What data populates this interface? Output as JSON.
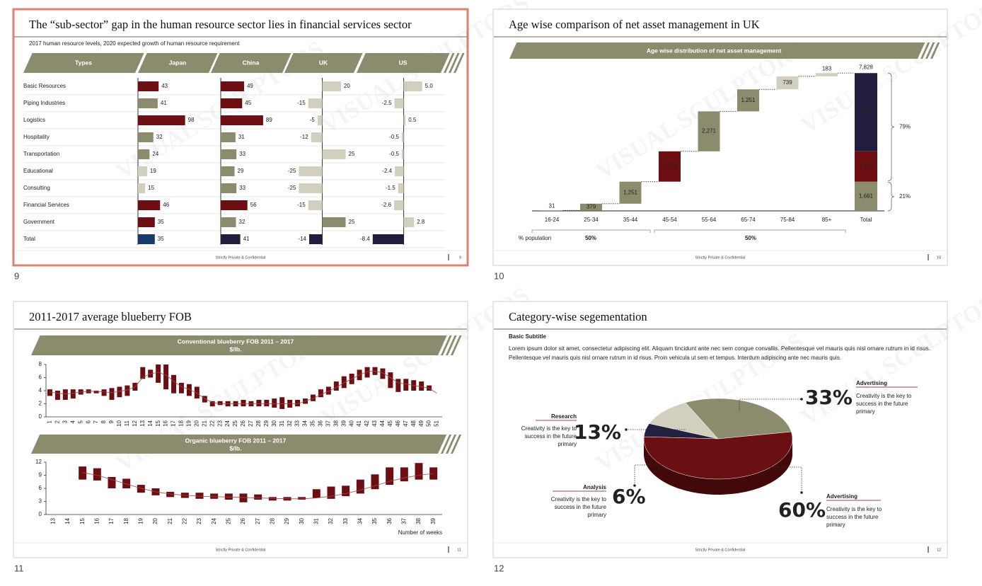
{
  "watermark": "VISUAL SCULPTORS",
  "footer": "Strictly Private & Confidential",
  "slides": [
    {
      "number": "9",
      "title": "The “sub-sector” gap in the human resource sector lies in financial services sector",
      "subtitle": "2017 human resource levels, 2020 expected growth of human resource requirement",
      "chart": {
        "type": "bar-table",
        "category_header": "Types",
        "categories": [
          "Basic Resources",
          "Piping Industries",
          "Logistics",
          "Hospitality",
          "Transportation",
          "Educational",
          "Consulting",
          "Financial Services",
          "Government",
          "Total"
        ],
        "series": [
          {
            "name": "Japan",
            "values": [
              43,
              41,
              98,
              32,
              24,
              19,
              15,
              46,
              35,
              35
            ],
            "xlim": [
              0,
              150
            ],
            "colors": [
              "#6d0f12",
              "#8c8b6e",
              "#6d0f12",
              "#8c8b6e",
              "#8c8b6e",
              "#d2cfbe",
              "#d2cfbe",
              "#6d0f12",
              "#6d0f12",
              "#173a6b"
            ]
          },
          {
            "name": "China",
            "values": [
              49,
              45,
              89,
              31,
              33,
              29,
              33,
              56,
              32,
              41
            ],
            "xlim": [
              0,
              150
            ],
            "colors": [
              "#6d0f12",
              "#6d0f12",
              "#6d0f12",
              "#8c8b6e",
              "#8c8b6e",
              "#8c8b6e",
              "#8c8b6e",
              "#6d0f12",
              "#8c8b6e",
              "#221d3e"
            ]
          },
          {
            "name": "UK",
            "values": [
              20,
              -15,
              -5,
              -12,
              25,
              -25,
              -25,
              -15,
              25,
              -14
            ],
            "xlim": [
              -42,
              42
            ],
            "colors": [
              "#d2cfbe",
              "#d2cfbe",
              "#d2cfbe",
              "#d2cfbe",
              "#d2cfbe",
              "#d2cfbe",
              "#d2cfbe",
              "#d2cfbe",
              "#8c8b6e",
              "#221d3e"
            ]
          },
          {
            "name": "US",
            "values": [
              5,
              -2.5,
              0.5,
              -0.5,
              -0.5,
              -2.4,
              -1.5,
              -2.6,
              2.8,
              -8.4
            ],
            "value_labels": [
              "5.0",
              "-2.5",
              "0.5",
              "-0.5",
              "-0.5",
              "-2.4",
              "-1.5",
              "-2.6",
              "2.8",
              "-8.4"
            ],
            "xlim": [
              -12,
              11
            ],
            "colors": [
              "#d2cfbe",
              "#d2cfbe",
              "#d2cfbe",
              "#d2cfbe",
              "#d2cfbe",
              "#d2cfbe",
              "#d2cfbe",
              "#d2cfbe",
              "#d2cfbe",
              "#221d3e"
            ]
          }
        ]
      }
    },
    {
      "number": "10",
      "title": "Age wise comparison of net asset management in UK",
      "chart": {
        "type": "waterfall",
        "title": "Age wise distribution of net asset management",
        "categories": [
          "16-24",
          "25-34",
          "35-44",
          "45-54",
          "55-64",
          "65-74",
          "75-84",
          "85+"
        ],
        "values": [
          31,
          379,
          1251,
          1723,
          2271,
          1251,
          739,
          183
        ],
        "value_labels": [
          "31",
          "379",
          "1,251",
          "1,723",
          "2,271",
          "1,251",
          "739",
          "183"
        ],
        "colors": [
          "#8c8b6e",
          "#8c8b6e",
          "#8c8b6e",
          "#6d0f12",
          "#8c8b6e",
          "#8c8b6e",
          "#d2cfbe",
          "#d2cfbe"
        ],
        "ylim": [
          0,
          8000
        ],
        "total": {
          "name": "Total",
          "value": 7828,
          "label": "7,828",
          "segments": [
            {
              "value": 1661,
              "label": "1,661",
              "color": "#8c8b6e"
            },
            {
              "value": 1723,
              "label": "1,723",
              "color": "#6d0f12"
            },
            {
              "value": 4444,
              "label": "4,444",
              "color": "#221d3e"
            }
          ]
        },
        "shares": [
          "79%",
          "21%"
        ],
        "population": {
          "name": "% population",
          "labels": [
            "50%",
            "50%"
          ]
        }
      }
    },
    {
      "number": "11",
      "title": "2011-2017 average blueberry FOB",
      "charts": [
        {
          "type": "candlestick",
          "title": "Conventional blueberry FOB 2011 – 2017",
          "subtitle": "$/lb.",
          "color": "#6d0f12",
          "x": [
            1,
            2,
            3,
            4,
            5,
            6,
            7,
            8,
            9,
            10,
            11,
            12,
            13,
            14,
            15,
            16,
            17,
            18,
            19,
            20,
            21,
            22,
            23,
            24,
            25,
            26,
            27,
            28,
            29,
            30,
            31,
            32,
            33,
            34,
            35,
            36,
            37,
            38,
            39,
            40,
            41,
            42,
            43,
            44,
            45,
            46,
            47,
            48,
            49,
            50,
            51
          ],
          "xlim": [
            0.5,
            51.5
          ],
          "ylim": [
            0,
            8
          ],
          "yticks": [
            0,
            2,
            4,
            6,
            8
          ],
          "low": [
            3.2,
            2.6,
            2.6,
            2.8,
            3.4,
            3.6,
            3.6,
            3.2,
            2.6,
            3.0,
            3.2,
            4.0,
            5.8,
            6.0,
            5.2,
            4.2,
            3.6,
            3.6,
            3.2,
            2.8,
            2.2,
            1.6,
            1.8,
            1.6,
            1.6,
            1.6,
            1.6,
            1.6,
            1.6,
            1.4,
            1.2,
            1.4,
            1.6,
            2.0,
            2.4,
            3.0,
            3.4,
            4.0,
            4.4,
            5.0,
            5.6,
            6.0,
            6.4,
            5.8,
            4.4,
            3.8,
            4.0,
            4.0,
            4.0,
            4.0,
            null
          ],
          "high": [
            4.2,
            4.0,
            4.2,
            4.2,
            4.2,
            4.2,
            4.0,
            4.2,
            4.4,
            4.6,
            4.8,
            5.2,
            7.6,
            7.2,
            8.0,
            8.0,
            6.4,
            5.2,
            5.0,
            4.6,
            3.2,
            2.4,
            2.4,
            2.4,
            2.4,
            2.6,
            2.4,
            2.6,
            2.6,
            2.8,
            3.0,
            2.6,
            2.6,
            2.8,
            3.4,
            4.2,
            4.6,
            5.4,
            6.2,
            6.6,
            7.2,
            7.6,
            7.6,
            7.4,
            6.8,
            5.8,
            5.8,
            5.6,
            5.4,
            4.8,
            null
          ],
          "trend": [
            3.8,
            3.6,
            3.5,
            3.6,
            3.8,
            3.9,
            3.9,
            3.8,
            3.7,
            3.9,
            4.1,
            4.6,
            6.0,
            6.6,
            6.8,
            6.4,
            5.4,
            4.6,
            4.2,
            3.6,
            2.8,
            2.2,
            2.0,
            2.0,
            2.0,
            2.0,
            2.0,
            2.0,
            2.0,
            2.0,
            2.0,
            2.0,
            2.0,
            2.4,
            2.8,
            3.4,
            3.9,
            4.5,
            5.2,
            5.8,
            6.4,
            6.9,
            7.0,
            6.7,
            6.0,
            5.2,
            5.0,
            4.8,
            4.6,
            4.4,
            3.6
          ]
        },
        {
          "type": "candlestick",
          "title": "Organic blueberry FOB 2011 – 2017",
          "subtitle": "$/lb.",
          "color": "#6d0f12",
          "x": [
            13,
            14,
            15,
            16,
            17,
            18,
            19,
            20,
            21,
            22,
            23,
            24,
            25,
            26,
            27,
            28,
            29,
            30,
            31,
            32,
            33,
            34,
            35,
            36,
            37,
            38,
            39
          ],
          "xlim": [
            12.5,
            39.5
          ],
          "ylim": [
            0,
            12
          ],
          "yticks": [
            0,
            3,
            6,
            9,
            12
          ],
          "xlabel": "Number of weeks",
          "low": [
            null,
            null,
            8.0,
            7.8,
            6.0,
            6.0,
            5.0,
            4.4,
            4.0,
            3.8,
            3.6,
            3.6,
            3.4,
            2.8,
            3.4,
            3.2,
            3.2,
            3.4,
            3.8,
            3.6,
            4.2,
            4.8,
            5.8,
            6.8,
            7.6,
            8.0,
            8.0
          ],
          "high": [
            null,
            null,
            11.0,
            10.6,
            8.6,
            8.2,
            6.8,
            6.0,
            5.2,
            5.0,
            5.0,
            4.8,
            4.8,
            4.8,
            4.6,
            4.0,
            4.0,
            4.0,
            5.8,
            6.4,
            6.6,
            8.0,
            9.2,
            10.8,
            10.8,
            11.8,
            10.8
          ],
          "trend": [
            null,
            null,
            9.6,
            9.0,
            8.0,
            7.0,
            6.0,
            5.2,
            4.7,
            4.4,
            4.2,
            4.1,
            4.0,
            3.9,
            3.8,
            3.7,
            3.6,
            3.6,
            3.8,
            4.2,
            4.8,
            5.6,
            6.6,
            7.6,
            8.4,
            9.0,
            9.4
          ]
        }
      ]
    },
    {
      "number": "12",
      "title": "Category-wise segementation",
      "subtitle": "Basic Subtitle",
      "paragraph": [
        "Lorem ipsum dolor sit amet, consectetur adipiscing elit. Aliquam tincidunt ante nec sem congue convallis. Pellentesque vel mauris quis nisl ornare rutrum in id risus.",
        "Pellentesque vel mauris quis nisl ornare rutrum in id risus. Proin vehicula ut sem et tempus. Interdum adipiscing ante nec mauris quis."
      ],
      "chart": {
        "type": "pie",
        "categories": [
          "Advertising",
          "Research",
          "Analysis",
          "Advertising"
        ],
        "values": [
          33,
          13,
          6,
          60
        ],
        "value_labels": [
          "33%",
          "13%",
          "6%",
          "60%"
        ],
        "colors": [
          "#8c8b6e",
          "#d2cfbe",
          "#23203f",
          "#6a0f12"
        ],
        "descriptions": [
          [
            "Creativity is the key to",
            "success in the future",
            "primary"
          ],
          [
            "Creativity is the key to",
            "success in the future",
            "primary"
          ],
          [
            "Creativity is the key to",
            "success in the future",
            "primary"
          ],
          [
            "Creativity is the key to",
            "success in the future",
            "primary"
          ]
        ]
      }
    }
  ]
}
